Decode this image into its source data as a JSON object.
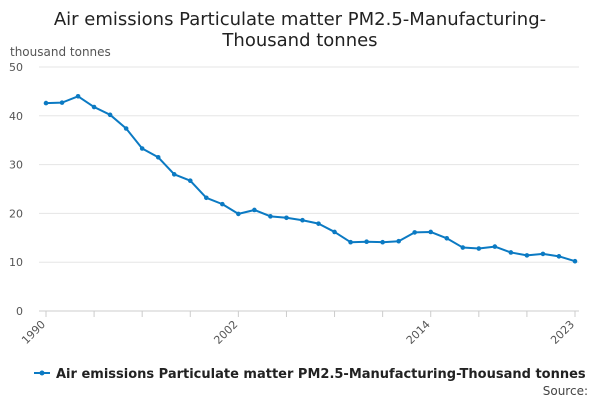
{
  "chart_data": {
    "type": "line",
    "title_lines": [
      "Air emissions Particulate matter PM2.5-Manufacturing-",
      "Thousand tonnes"
    ],
    "ylabel": "thousand tonnes",
    "xlabel": "",
    "ylim": [
      0,
      50
    ],
    "y_ticks": [
      "0",
      "10",
      "20",
      "30",
      "40",
      "50"
    ],
    "x_tick_labels": [
      "1990",
      "2002",
      "2014",
      "2023"
    ],
    "grid": true,
    "legend_position": "bottom",
    "series": [
      {
        "name": "Air emissions Particulate matter PM2.5-Manufacturing-Thousand tonnes",
        "color": "#0b7ac3",
        "x": [
          1990,
          1991,
          1992,
          1993,
          1994,
          1995,
          1996,
          1997,
          1998,
          1999,
          2000,
          2001,
          2002,
          2003,
          2004,
          2005,
          2006,
          2007,
          2008,
          2009,
          2010,
          2011,
          2012,
          2013,
          2014,
          2015,
          2016,
          2017,
          2018,
          2019,
          2020,
          2021,
          2022,
          2023
        ],
        "values": [
          42.6,
          42.7,
          44.0,
          41.8,
          40.2,
          37.4,
          33.3,
          31.5,
          28.0,
          26.7,
          23.2,
          21.9,
          19.9,
          20.7,
          19.4,
          19.1,
          18.6,
          17.9,
          16.2,
          14.1,
          14.2,
          14.1,
          14.3,
          16.1,
          16.2,
          14.9,
          13.0,
          12.8,
          13.2,
          12.0,
          11.4,
          11.7,
          11.2,
          10.2
        ]
      }
    ],
    "source_label": "Source:"
  }
}
